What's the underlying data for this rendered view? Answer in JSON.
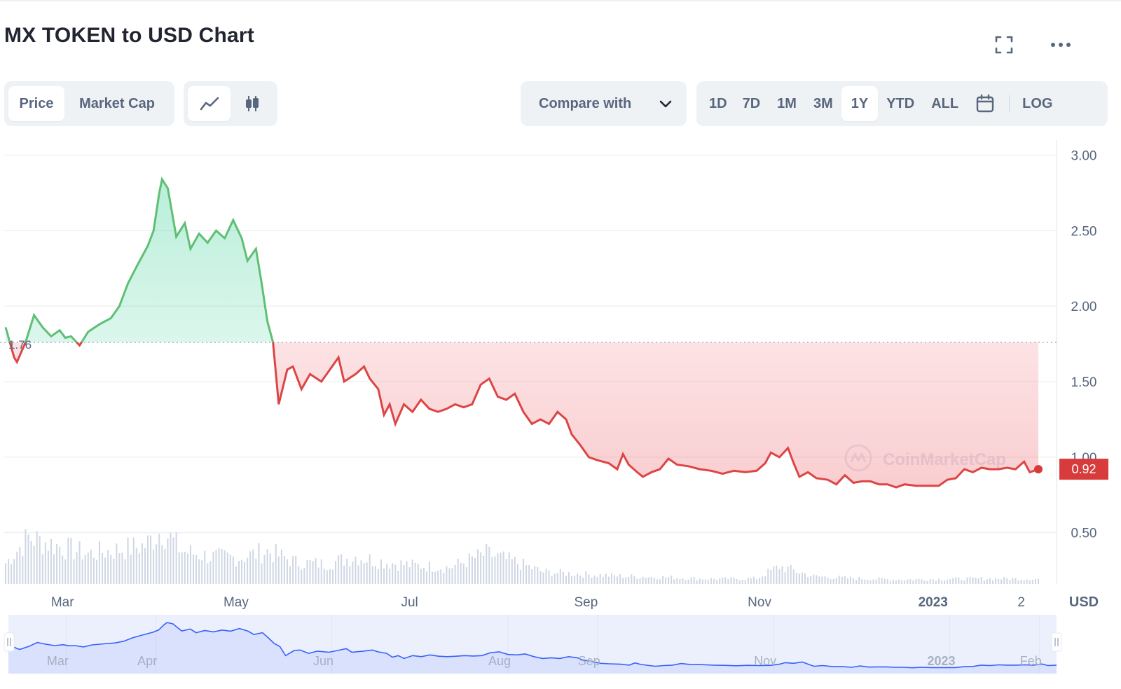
{
  "header": {
    "title": "MX TOKEN to USD Chart",
    "fullscreen_icon": "fullscreen-icon",
    "more_icon": "more-horizontal-icon"
  },
  "toolbar": {
    "metric_tabs": [
      {
        "label": "Price",
        "active": true
      },
      {
        "label": "Market Cap",
        "active": false
      }
    ],
    "chart_types": [
      {
        "icon": "line-chart-icon",
        "active": true
      },
      {
        "icon": "candlestick-icon",
        "active": false
      }
    ],
    "compare_label": "Compare with",
    "compare_icon": "chevron-down-icon",
    "ranges": [
      {
        "label": "1D",
        "active": false
      },
      {
        "label": "7D",
        "active": false
      },
      {
        "label": "1M",
        "active": false
      },
      {
        "label": "3M",
        "active": false
      },
      {
        "label": "1Y",
        "active": true
      },
      {
        "label": "YTD",
        "active": false
      },
      {
        "label": "ALL",
        "active": false
      }
    ],
    "calendar_icon": "calendar-icon",
    "log_label": "LOG"
  },
  "watermark": "CoinMarketCap",
  "colors": {
    "up": "#16c784",
    "up_line": "#5fbf74",
    "down": "#dd4545",
    "navigator_line": "#3861fb",
    "badge": "#d73b3b"
  },
  "chart_data": {
    "type": "line",
    "title": "",
    "xlabel": "",
    "ylabel": "",
    "currency_label": "USD",
    "baseline": 1.76,
    "baseline_label": "1.76",
    "current_price": 0.92,
    "current_price_label": "0.92",
    "ylim": [
      0.16,
      3.1
    ],
    "yticks": [
      "0.50",
      "1.00",
      "1.50",
      "2.00",
      "2.50",
      "3.00"
    ],
    "xticks": [
      {
        "label": "Mar",
        "date": "2022-03-01",
        "bold": false
      },
      {
        "label": "May",
        "date": "2022-05-01",
        "bold": false
      },
      {
        "label": "Jul",
        "date": "2022-07-01",
        "bold": false
      },
      {
        "label": "Sep",
        "date": "2022-09-01",
        "bold": false
      },
      {
        "label": "Nov",
        "date": "2022-11-01",
        "bold": false
      },
      {
        "label": "2023",
        "date": "2023-01-01",
        "bold": true
      },
      {
        "label": "2",
        "date": "2023-02-01",
        "bold": false
      }
    ],
    "navigator_ticks": [
      {
        "label": "Mar",
        "date": "2022-03-01",
        "bold": false
      },
      {
        "label": "Apr",
        "date": "2022-04-01",
        "bold": false
      },
      {
        "label": "Jun",
        "date": "2022-06-01",
        "bold": false
      },
      {
        "label": "Aug",
        "date": "2022-08-01",
        "bold": false
      },
      {
        "label": "Sep",
        "date": "2022-09-01",
        "bold": false
      },
      {
        "label": "Nov",
        "date": "2022-11-01",
        "bold": false
      },
      {
        "label": "2023",
        "date": "2023-01-01",
        "bold": true
      },
      {
        "label": "Feb",
        "date": "2023-02-01",
        "bold": false
      }
    ],
    "price_series": {
      "name": "Price",
      "points": [
        [
          "2022-02-09",
          1.86
        ],
        [
          "2022-02-12",
          1.66
        ],
        [
          "2022-02-13",
          1.63
        ],
        [
          "2022-02-16",
          1.76
        ],
        [
          "2022-02-19",
          1.94
        ],
        [
          "2022-02-22",
          1.86
        ],
        [
          "2022-02-25",
          1.8
        ],
        [
          "2022-02-28",
          1.84
        ],
        [
          "2022-03-02",
          1.79
        ],
        [
          "2022-03-04",
          1.8
        ],
        [
          "2022-03-07",
          1.74
        ],
        [
          "2022-03-10",
          1.83
        ],
        [
          "2022-03-14",
          1.88
        ],
        [
          "2022-03-18",
          1.92
        ],
        [
          "2022-03-21",
          2.0
        ],
        [
          "2022-03-24",
          2.15
        ],
        [
          "2022-03-27",
          2.26
        ],
        [
          "2022-03-31",
          2.4
        ],
        [
          "2022-04-02",
          2.5
        ],
        [
          "2022-04-04",
          2.75
        ],
        [
          "2022-04-05",
          2.84
        ],
        [
          "2022-04-07",
          2.78
        ],
        [
          "2022-04-10",
          2.46
        ],
        [
          "2022-04-13",
          2.55
        ],
        [
          "2022-04-15",
          2.38
        ],
        [
          "2022-04-18",
          2.48
        ],
        [
          "2022-04-21",
          2.42
        ],
        [
          "2022-04-24",
          2.5
        ],
        [
          "2022-04-27",
          2.45
        ],
        [
          "2022-04-30",
          2.57
        ],
        [
          "2022-05-03",
          2.45
        ],
        [
          "2022-05-05",
          2.3
        ],
        [
          "2022-05-08",
          2.38
        ],
        [
          "2022-05-10",
          2.15
        ],
        [
          "2022-05-12",
          1.9
        ],
        [
          "2022-05-14",
          1.76
        ],
        [
          "2022-05-16",
          1.35
        ],
        [
          "2022-05-19",
          1.58
        ],
        [
          "2022-05-21",
          1.6
        ],
        [
          "2022-05-24",
          1.45
        ],
        [
          "2022-05-27",
          1.55
        ],
        [
          "2022-05-31",
          1.5
        ],
        [
          "2022-06-03",
          1.58
        ],
        [
          "2022-06-06",
          1.66
        ],
        [
          "2022-06-08",
          1.5
        ],
        [
          "2022-06-12",
          1.55
        ],
        [
          "2022-06-15",
          1.6
        ],
        [
          "2022-06-17",
          1.52
        ],
        [
          "2022-06-20",
          1.45
        ],
        [
          "2022-06-22",
          1.28
        ],
        [
          "2022-06-24",
          1.35
        ],
        [
          "2022-06-26",
          1.22
        ],
        [
          "2022-06-29",
          1.35
        ],
        [
          "2022-07-02",
          1.3
        ],
        [
          "2022-07-05",
          1.38
        ],
        [
          "2022-07-08",
          1.32
        ],
        [
          "2022-07-11",
          1.3
        ],
        [
          "2022-07-14",
          1.32
        ],
        [
          "2022-07-17",
          1.35
        ],
        [
          "2022-07-20",
          1.33
        ],
        [
          "2022-07-23",
          1.35
        ],
        [
          "2022-07-26",
          1.48
        ],
        [
          "2022-07-29",
          1.52
        ],
        [
          "2022-08-01",
          1.4
        ],
        [
          "2022-08-04",
          1.38
        ],
        [
          "2022-08-07",
          1.42
        ],
        [
          "2022-08-10",
          1.3
        ],
        [
          "2022-08-13",
          1.22
        ],
        [
          "2022-08-16",
          1.25
        ],
        [
          "2022-08-19",
          1.22
        ],
        [
          "2022-08-22",
          1.3
        ],
        [
          "2022-08-25",
          1.25
        ],
        [
          "2022-08-27",
          1.15
        ],
        [
          "2022-08-30",
          1.08
        ],
        [
          "2022-09-02",
          1.0
        ],
        [
          "2022-09-05",
          0.98
        ],
        [
          "2022-09-09",
          0.96
        ],
        [
          "2022-09-12",
          0.92
        ],
        [
          "2022-09-14",
          1.02
        ],
        [
          "2022-09-16",
          0.95
        ],
        [
          "2022-09-19",
          0.9
        ],
        [
          "2022-09-21",
          0.87
        ],
        [
          "2022-09-24",
          0.9
        ],
        [
          "2022-09-27",
          0.92
        ],
        [
          "2022-09-30",
          0.99
        ],
        [
          "2022-10-03",
          0.95
        ],
        [
          "2022-10-07",
          0.94
        ],
        [
          "2022-10-11",
          0.92
        ],
        [
          "2022-10-15",
          0.91
        ],
        [
          "2022-10-19",
          0.89
        ],
        [
          "2022-10-23",
          0.91
        ],
        [
          "2022-10-27",
          0.9
        ],
        [
          "2022-10-31",
          0.91
        ],
        [
          "2022-11-03",
          0.96
        ],
        [
          "2022-11-05",
          1.03
        ],
        [
          "2022-11-08",
          1.0
        ],
        [
          "2022-11-11",
          1.06
        ],
        [
          "2022-11-13",
          0.96
        ],
        [
          "2022-11-15",
          0.87
        ],
        [
          "2022-11-18",
          0.9
        ],
        [
          "2022-11-21",
          0.86
        ],
        [
          "2022-11-25",
          0.85
        ],
        [
          "2022-11-28",
          0.82
        ],
        [
          "2022-12-01",
          0.88
        ],
        [
          "2022-12-04",
          0.83
        ],
        [
          "2022-12-07",
          0.84
        ],
        [
          "2022-12-10",
          0.84
        ],
        [
          "2022-12-13",
          0.82
        ],
        [
          "2022-12-16",
          0.82
        ],
        [
          "2022-12-19",
          0.8
        ],
        [
          "2022-12-22",
          0.82
        ],
        [
          "2022-12-26",
          0.81
        ],
        [
          "2022-12-30",
          0.81
        ],
        [
          "2023-01-03",
          0.81
        ],
        [
          "2023-01-06",
          0.85
        ],
        [
          "2023-01-09",
          0.86
        ],
        [
          "2023-01-12",
          0.92
        ],
        [
          "2023-01-15",
          0.9
        ],
        [
          "2023-01-18",
          0.93
        ],
        [
          "2023-01-21",
          0.92
        ],
        [
          "2023-01-24",
          0.92
        ],
        [
          "2023-01-27",
          0.93
        ],
        [
          "2023-01-30",
          0.92
        ],
        [
          "2023-02-02",
          0.97
        ],
        [
          "2023-02-04",
          0.9
        ],
        [
          "2023-02-07",
          0.92
        ]
      ]
    },
    "volume_series": {
      "name": "Volume",
      "points": [
        [
          "2022-02-09",
          0.38
        ],
        [
          "2022-02-17",
          0.85
        ],
        [
          "2022-02-27",
          0.7
        ],
        [
          "2022-03-10",
          0.55
        ],
        [
          "2022-03-20",
          0.62
        ],
        [
          "2022-03-30",
          0.7
        ],
        [
          "2022-04-05",
          1.0
        ],
        [
          "2022-04-12",
          0.6
        ],
        [
          "2022-04-22",
          0.5
        ],
        [
          "2022-05-02",
          0.48
        ],
        [
          "2022-05-12",
          0.6
        ],
        [
          "2022-05-22",
          0.4
        ],
        [
          "2022-06-01",
          0.36
        ],
        [
          "2022-06-12",
          0.5
        ],
        [
          "2022-06-22",
          0.4
        ],
        [
          "2022-07-02",
          0.34
        ],
        [
          "2022-07-15",
          0.3
        ],
        [
          "2022-07-28",
          0.55
        ],
        [
          "2022-08-07",
          0.4
        ],
        [
          "2022-08-17",
          0.22
        ],
        [
          "2022-08-30",
          0.18
        ],
        [
          "2022-09-15",
          0.14
        ],
        [
          "2022-09-30",
          0.12
        ],
        [
          "2022-10-15",
          0.09
        ],
        [
          "2022-10-31",
          0.1
        ],
        [
          "2022-11-08",
          0.32
        ],
        [
          "2022-11-20",
          0.14
        ],
        [
          "2022-12-05",
          0.1
        ],
        [
          "2022-12-20",
          0.08
        ],
        [
          "2023-01-05",
          0.09
        ],
        [
          "2023-01-20",
          0.1
        ],
        [
          "2023-02-07",
          0.09
        ]
      ]
    },
    "navigator": {
      "range_start": "2022-02-09",
      "range_end": "2023-02-07"
    }
  }
}
